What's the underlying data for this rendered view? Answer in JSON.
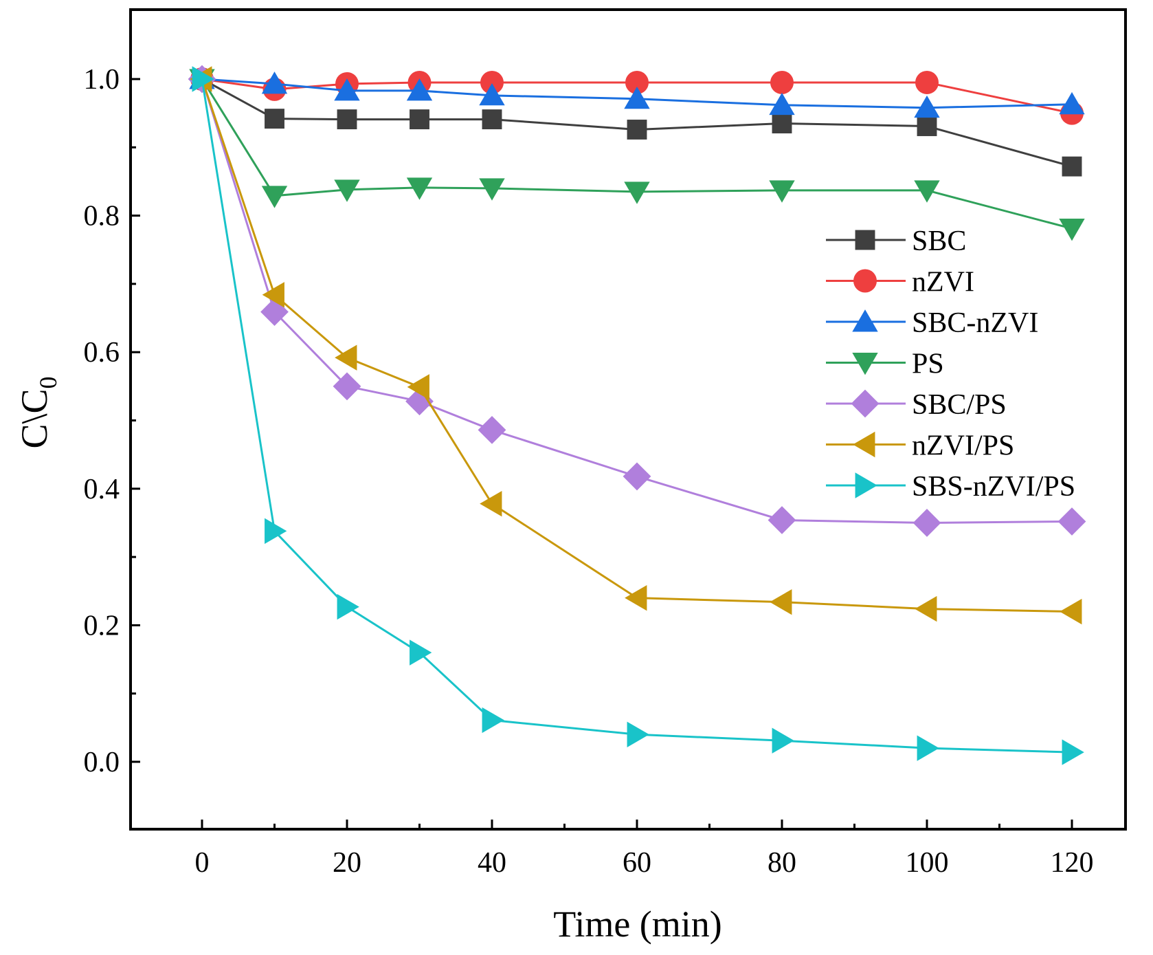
{
  "chart_data": {
    "type": "line",
    "title": "",
    "xlabel": "Time (min)",
    "ylabel_main": "C\\C",
    "ylabel_sub": "0",
    "xlim": [
      -10,
      128
    ],
    "ylim": [
      -0.1,
      1.1
    ],
    "x_ticks": [
      0,
      20,
      40,
      60,
      80,
      100,
      120
    ],
    "x_tick_labels": [
      "0",
      "20",
      "40",
      "60",
      "80",
      "100",
      "120"
    ],
    "y_ticks": [
      0.0,
      0.2,
      0.4,
      0.6,
      0.8,
      1.0
    ],
    "y_tick_labels": [
      "0.0",
      "0.2",
      "0.4",
      "0.6",
      "0.8",
      "1.0"
    ],
    "x": [
      0,
      10,
      20,
      30,
      40,
      60,
      80,
      100,
      120
    ],
    "legend_position": "right",
    "series": [
      {
        "name": "SBC",
        "color": "#3f3f3f",
        "marker": "square",
        "values": [
          1.0,
          0.942,
          0.941,
          0.941,
          0.941,
          0.926,
          0.935,
          0.931,
          0.872
        ]
      },
      {
        "name": "nZVI",
        "color": "#ee3f3f",
        "marker": "circle",
        "values": [
          1.0,
          0.985,
          0.993,
          0.995,
          0.995,
          0.995,
          0.995,
          0.995,
          0.95
        ]
      },
      {
        "name": "SBC-nZVI",
        "color": "#1a6fe0",
        "marker": "triangle-up",
        "values": [
          1.0,
          0.993,
          0.983,
          0.983,
          0.976,
          0.971,
          0.962,
          0.958,
          0.963
        ]
      },
      {
        "name": "PS",
        "color": "#2fa15a",
        "marker": "triangle-down",
        "values": [
          1.0,
          0.829,
          0.838,
          0.841,
          0.84,
          0.835,
          0.837,
          0.837,
          0.781
        ]
      },
      {
        "name": "SBC/PS",
        "color": "#b07fdc",
        "marker": "diamond",
        "values": [
          1.0,
          0.659,
          0.55,
          0.528,
          0.486,
          0.418,
          0.354,
          0.35,
          0.352
        ]
      },
      {
        "name": "nZVI/PS",
        "color": "#c9980c",
        "marker": "triangle-left",
        "values": [
          1.0,
          0.684,
          0.592,
          0.549,
          0.378,
          0.24,
          0.234,
          0.224,
          0.22
        ]
      },
      {
        "name": "SBS-nZVI/PS",
        "color": "#19c3c9",
        "marker": "triangle-right",
        "values": [
          1.0,
          0.338,
          0.227,
          0.16,
          0.061,
          0.04,
          0.031,
          0.02,
          0.014
        ]
      }
    ]
  }
}
